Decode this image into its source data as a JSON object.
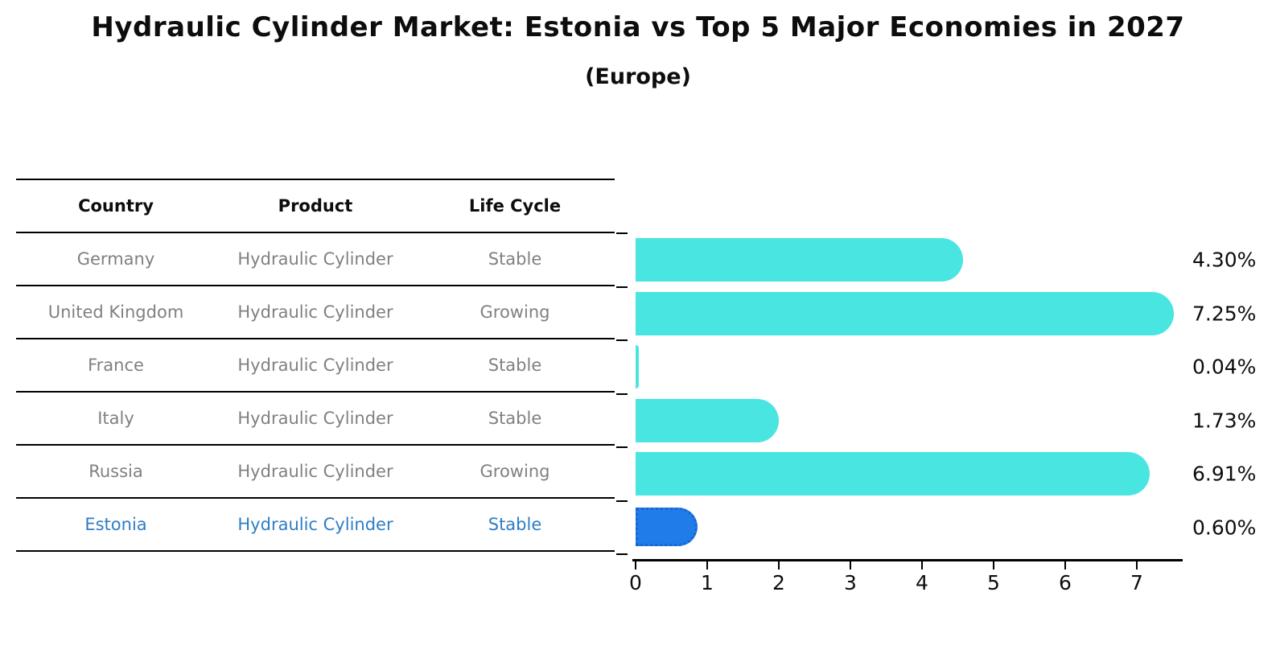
{
  "title": "Hydraulic Cylinder Market: Estonia vs Top 5 Major Economies in 2027",
  "subtitle": "(Europe)",
  "table": {
    "columns": [
      "Country",
      "Product",
      "Life Cycle"
    ],
    "rows": [
      {
        "country": "Germany",
        "product": "Hydraulic Cylinder",
        "life_cycle": "Stable",
        "highlight": false
      },
      {
        "country": "United Kingdom",
        "product": "Hydraulic Cylinder",
        "life_cycle": "Growing",
        "highlight": false
      },
      {
        "country": "France",
        "product": "Hydraulic Cylinder",
        "life_cycle": "Stable",
        "highlight": false
      },
      {
        "country": "Italy",
        "product": "Hydraulic Cylinder",
        "life_cycle": "Stable",
        "highlight": false
      },
      {
        "country": "Russia",
        "product": "Hydraulic Cylinder",
        "life_cycle": "Growing",
        "highlight": false
      },
      {
        "country": "Estonia",
        "product": "Hydraulic Cylinder",
        "life_cycle": "Stable",
        "highlight": true
      }
    ]
  },
  "chart_data": {
    "type": "bar",
    "orientation": "horizontal",
    "title": "Hydraulic Cylinder Market: Estonia vs Top 5 Major Economies in 2027 (Europe)",
    "categories": [
      "Germany",
      "United Kingdom",
      "France",
      "Italy",
      "Russia",
      "Estonia"
    ],
    "values": [
      4.3,
      7.25,
      0.04,
      1.73,
      6.91,
      0.6
    ],
    "value_labels": [
      "4.30%",
      "7.25%",
      "0.04%",
      "1.73%",
      "6.91%",
      "0.60%"
    ],
    "unit": "percent",
    "xlabel": "",
    "ylabel": "",
    "xlim": [
      0,
      7.6
    ],
    "x_ticks": [
      "0",
      "1",
      "2",
      "3",
      "4",
      "5",
      "6",
      "7"
    ],
    "grid": false,
    "legend": false,
    "highlight_index": 5,
    "bar_color": "#48e5e1",
    "highlight_bar_color": "#1f7ce8",
    "highlight_text_color": "#2d7dc6",
    "label_color": "#0d0d0d"
  }
}
